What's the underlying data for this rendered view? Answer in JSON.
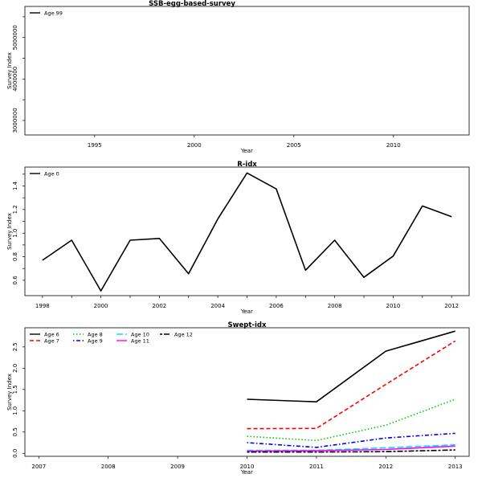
{
  "chart_data": [
    {
      "type": "line",
      "title": "SSB-egg-based-survey",
      "xlabel": "Year",
      "ylabel": "Survey Index",
      "xlim": [
        1991.5,
        2013.8
      ],
      "ylim": [
        2650000,
        5750000
      ],
      "xticks": [
        1995,
        2000,
        2005,
        2010
      ],
      "yticks": [
        3000000,
        4000000,
        5000000
      ],
      "yticks_minor": [
        3500000,
        4500000,
        5500000
      ],
      "legend_position": "top-left",
      "series": [
        {
          "name": "Age 99",
          "color": "#000000",
          "dash": "solid",
          "x": [],
          "y": []
        }
      ]
    },
    {
      "type": "line",
      "title": "R-idx",
      "xlabel": "Year",
      "ylabel": "Survey Index",
      "xlim": [
        1997.4,
        2012.6
      ],
      "ylim": [
        0.47,
        1.56
      ],
      "xticks": [
        1998,
        2000,
        2002,
        2004,
        2006,
        2008,
        2010,
        2012
      ],
      "xticks_minor": [
        1999,
        2001,
        2003,
        2005,
        2007,
        2009,
        2011
      ],
      "yticks": [
        0.6,
        0.8,
        1.0,
        1.2,
        1.4
      ],
      "yticks_minor": [
        0.7,
        0.9,
        1.1,
        1.3,
        1.5
      ],
      "legend_position": "top-left",
      "series": [
        {
          "name": "Age 0",
          "color": "#000000",
          "dash": "solid",
          "x": [
            1998,
            1999,
            2000,
            2001,
            2002,
            2003,
            2004,
            2005,
            2006,
            2007,
            2008,
            2009,
            2010,
            2011,
            2012
          ],
          "y": [
            0.77,
            0.94,
            0.51,
            0.94,
            0.955,
            0.655,
            1.12,
            1.51,
            1.375,
            0.685,
            0.94,
            0.625,
            0.805,
            1.23,
            1.14
          ]
        }
      ]
    },
    {
      "type": "line",
      "title": "Swept-idx",
      "xlabel": "Year",
      "ylabel": "Survey Index",
      "xlim": [
        2006.8,
        2013.2
      ],
      "ylim": [
        -0.07,
        2.95
      ],
      "xticks": [
        2007,
        2008,
        2009,
        2010,
        2011,
        2012,
        2013
      ],
      "yticks": [
        0.0,
        0.5,
        1.0,
        1.5,
        2.0,
        2.5
      ],
      "legend_position": "top-left",
      "series": [
        {
          "name": "Age 6",
          "color": "#000000",
          "dash": "solid",
          "x": [
            2010,
            2011,
            2012,
            2013
          ],
          "y": [
            1.27,
            1.21,
            2.4,
            2.87
          ]
        },
        {
          "name": "Age 7",
          "color": "#ff0000",
          "dash": "dashed",
          "x": [
            2010,
            2011,
            2012,
            2013
          ],
          "y": [
            0.58,
            0.585,
            1.62,
            2.64
          ]
        },
        {
          "name": "Age 8",
          "color": "#00cc00",
          "dash": "dotted",
          "x": [
            2010,
            2011,
            2012,
            2013
          ],
          "y": [
            0.4,
            0.3,
            0.66,
            1.27
          ]
        },
        {
          "name": "Age 9",
          "color": "#0000ff",
          "dash": "dotdash",
          "x": [
            2010,
            2011,
            2012,
            2013
          ],
          "y": [
            0.25,
            0.14,
            0.36,
            0.47
          ]
        },
        {
          "name": "Age 10",
          "color": "#00e5ee",
          "dash": "longdash",
          "x": [
            2010,
            2011,
            2012,
            2013
          ],
          "y": [
            0.07,
            0.07,
            0.13,
            0.2
          ]
        },
        {
          "name": "Age 11",
          "color": "#ff00ff",
          "dash": "solid",
          "x": [
            2010,
            2011,
            2012,
            2013
          ],
          "y": [
            0.05,
            0.06,
            0.09,
            0.17
          ]
        },
        {
          "name": "Age 12",
          "color": "#000000",
          "dash": "twodash",
          "x": [
            2010,
            2011,
            2012,
            2013
          ],
          "y": [
            0.03,
            0.03,
            0.04,
            0.08
          ]
        }
      ]
    }
  ]
}
